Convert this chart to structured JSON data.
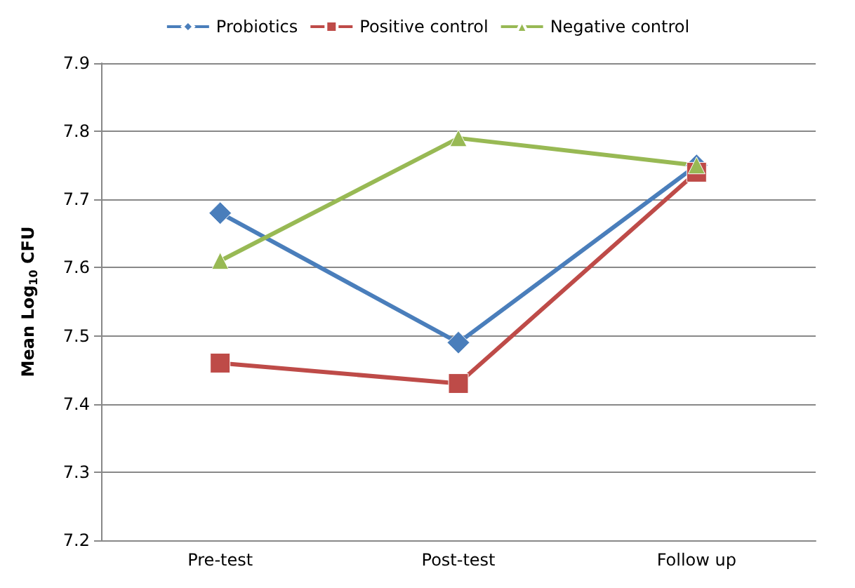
{
  "chart_data": {
    "type": "line",
    "ylabel": "Mean Log$_{10}$ CFU",
    "categories": [
      "Pre-test",
      "Post-test",
      "Follow up"
    ],
    "series": [
      {
        "name": "Probiotics",
        "color": "#4a7ebb",
        "marker": "diamond",
        "values": [
          7.68,
          7.49,
          7.75
        ]
      },
      {
        "name": "Positive control",
        "color": "#be4b48",
        "marker": "square",
        "values": [
          7.46,
          7.43,
          7.74
        ]
      },
      {
        "name": "Negative control",
        "color": "#98b954",
        "marker": "triangle",
        "values": [
          7.61,
          7.79,
          7.75
        ]
      }
    ],
    "ylim": [
      7.2,
      7.9
    ],
    "yticks": [
      7.2,
      7.3,
      7.4,
      7.5,
      7.6,
      7.7,
      7.8,
      7.9
    ],
    "grid": "y",
    "legend": "top"
  }
}
